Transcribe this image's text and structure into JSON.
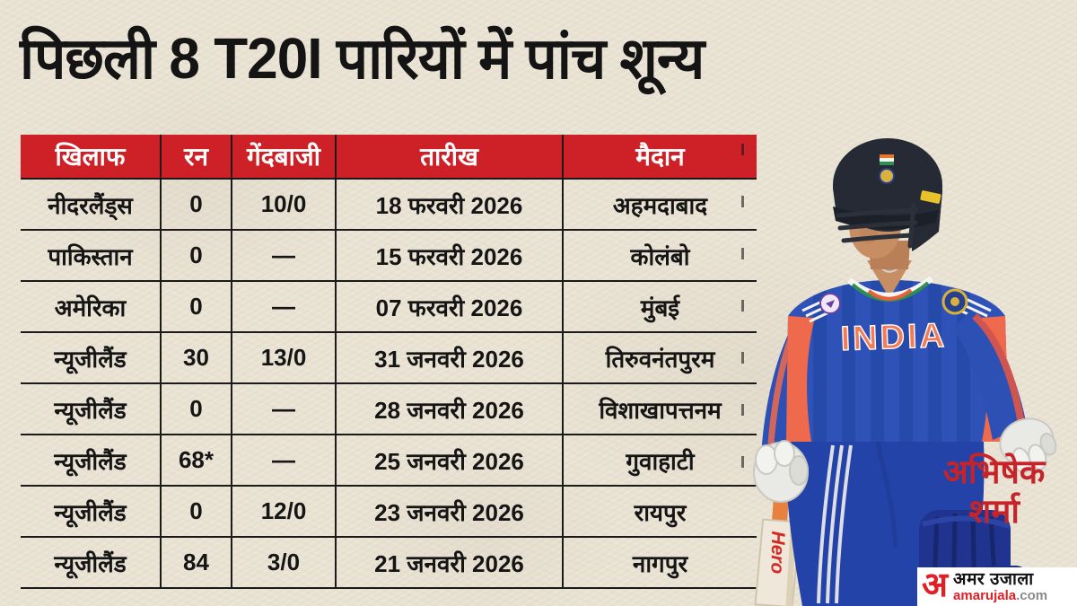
{
  "title": "पिछली 8 T20I पारियों में पांच शून्य",
  "chart_data": {
    "type": "table",
    "title": "पिछली 8 T20I पारियों में पांच शून्य",
    "columns": [
      "खिलाफ",
      "रन",
      "गेंदबाजी",
      "तारीख",
      "मैदान"
    ],
    "rows": [
      [
        "नीदरलैंड्स",
        "0",
        "10/0",
        "18 फरवरी 2026",
        "अहमदाबाद"
      ],
      [
        "पाकिस्तान",
        "0",
        "—",
        "15 फरवरी 2026",
        "कोलंबो"
      ],
      [
        "अमेरिका",
        "0",
        "—",
        "07 फरवरी 2026",
        "मुंबई"
      ],
      [
        "न्यूजीलैंड",
        "30",
        "13/0",
        "31 जनवरी 2026",
        "तिरुवनंतपुरम"
      ],
      [
        "न्यूजीलैंड",
        "0",
        "—",
        "28 जनवरी 2026",
        "विशाखापत्तनम"
      ],
      [
        "न्यूजीलैंड",
        "68*",
        "—",
        "25 जनवरी 2026",
        "गुवाहाटी"
      ],
      [
        "न्यूजीलैंड",
        "0",
        "12/0",
        "23 जनवरी 2026",
        "रायपुर"
      ],
      [
        "न्यूजीलैंड",
        "84",
        "3/0",
        "21 जनवरी 2026",
        "नागपुर"
      ]
    ]
  },
  "player": {
    "caption_line1": "अभिषेक",
    "caption_line2": "शर्मा",
    "jersey_text": "INDIA",
    "bat_brand": "Hero"
  },
  "logo": {
    "initial": "अ",
    "name_hindi": "अमर उजाला",
    "domain_main": "amarujala",
    "domain_suffix": ".com"
  },
  "colors": {
    "background": "#e9e2d3",
    "header_red": "#cd2127",
    "accent_red": "#c5242a",
    "text_black": "#151515"
  }
}
